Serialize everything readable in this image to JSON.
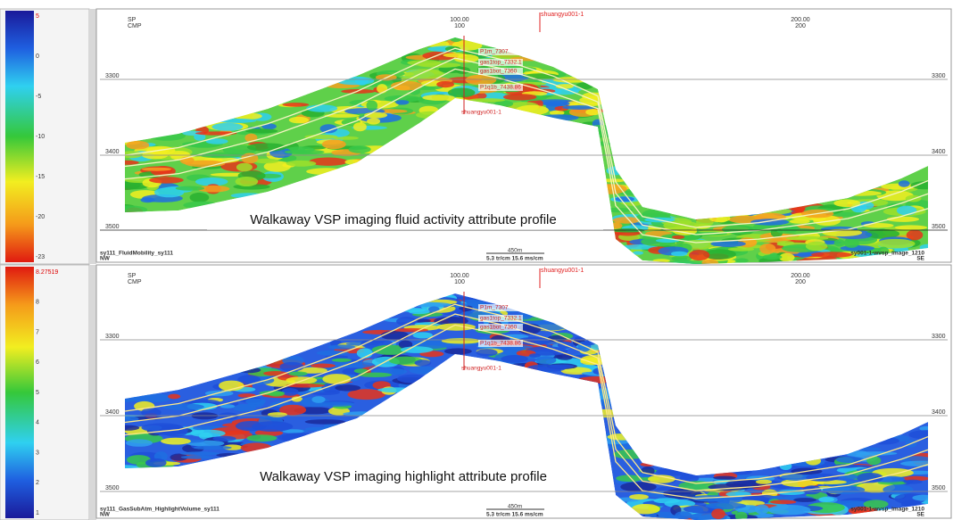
{
  "panels": [
    {
      "colorbar": {
        "labels": [
          "5",
          "0",
          "-5",
          "-10",
          "-15",
          "-20",
          "-23"
        ]
      },
      "header": {
        "sp": "SP",
        "cmp": "CMP",
        "ticks": [
          {
            "top": "100.00",
            "bottom": "100"
          },
          {
            "top": "200.00",
            "bottom": "200"
          }
        ]
      },
      "well": "shuangyu001-1",
      "depth_ticks": [
        "3300",
        "3400",
        "3500"
      ],
      "horizons": [
        "P1m_7307",
        "gas1top_7332.1",
        "gas1bot_7360",
        "P1q1b_7438.86"
      ],
      "well_bottom": "shuangyu001-1",
      "caption": "Walkaway VSP imaging fluid activity attribute profile",
      "footer": {
        "left_name": "sy111_FluidMobility_sy111",
        "left_dir": "NW",
        "scale": "450m",
        "speed": "5.3 tr/cm 15.6 ms/cm",
        "right_name": "sy001-1-wvsp_image_1210",
        "right_dir": "SE"
      }
    },
    {
      "colorbar": {
        "labels": [
          "8.27519",
          "8",
          "7",
          "6",
          "5",
          "4",
          "3",
          "2",
          "1"
        ]
      },
      "header": {
        "sp": "SP",
        "cmp": "CMP",
        "ticks": [
          {
            "top": "100.00",
            "bottom": "100"
          },
          {
            "top": "200.00",
            "bottom": "200"
          }
        ]
      },
      "well": "shuangyu001-1",
      "depth_ticks": [
        "3300",
        "3400",
        "3500"
      ],
      "horizons": [
        "P1m_7307",
        "gas1top_7332.1",
        "gas1bot_7360",
        "P1q1b_7438.86"
      ],
      "well_bottom": "shuangyu001-1",
      "caption": "Walkaway VSP imaging highlight attribute profile",
      "footer": {
        "left_name": "sy111_GasSubAtm_HighlightVolume_sy111",
        "left_dir": "NW",
        "scale": "450m",
        "speed": "5.3 tr/cm 15.6 ms/cm",
        "right_name": "sy001-1-wvsp_image_1210",
        "right_dir": "SE"
      }
    }
  ]
}
